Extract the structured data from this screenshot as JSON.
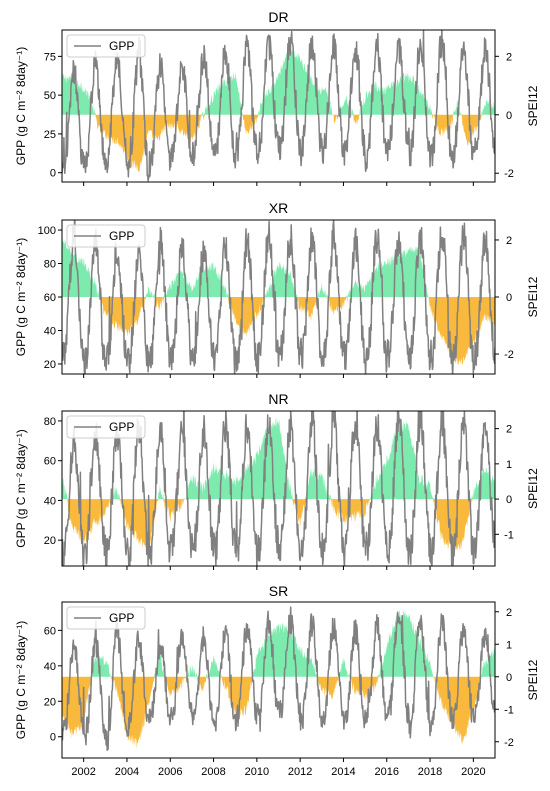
{
  "chart_data": [
    {
      "type": "line",
      "title": "DR",
      "ylabel": "GPP (g C m⁻² 8day⁻¹)",
      "y2label": "SPEI12",
      "ylim": [
        -6,
        92
      ],
      "yticks": [
        0,
        25,
        50,
        75
      ],
      "y2lim": [
        -2.3,
        2.9
      ],
      "y2ticks": [
        -2,
        0,
        2
      ],
      "xlim": [
        2001,
        2021
      ],
      "xticks": [
        2002,
        2004,
        2006,
        2008,
        2010,
        2012,
        2014,
        2016,
        2018,
        2020
      ],
      "show_xtick_labels": false,
      "legend": {
        "label": "GPP",
        "position": "top-left"
      },
      "gpp": {
        "season_peak_years": [
          2001.55,
          2002.55,
          2003.55,
          2004.55,
          2005.55,
          2006.55,
          2007.55,
          2008.55,
          2009.55,
          2010.55,
          2011.55,
          2012.55,
          2013.55,
          2014.55,
          2015.55,
          2016.55,
          2017.55,
          2018.55,
          2019.55,
          2020.55
        ],
        "peaks": [
          65,
          70,
          72,
          78,
          70,
          68,
          75,
          78,
          80,
          82,
          85,
          84,
          84,
          80,
          82,
          80,
          82,
          85,
          80,
          80
        ],
        "troughs": [
          3,
          5,
          8,
          0,
          5,
          10,
          12,
          10,
          12,
          15,
          15,
          14,
          15,
          12,
          10,
          15,
          12,
          10,
          12,
          14
        ]
      },
      "spei": {
        "x": [
          2001,
          2001.5,
          2001.9,
          2002.3,
          2002.7,
          2003.2,
          2003.6,
          2004.2,
          2004.6,
          2005.0,
          2005.4,
          2005.8,
          2006.2,
          2006.6,
          2007.0,
          2007.4,
          2007.9,
          2008.3,
          2008.7,
          2009.0,
          2009.5,
          2009.9,
          2010.3,
          2010.7,
          2011.1,
          2011.5,
          2012.0,
          2012.4,
          2012.8,
          2013.2,
          2013.6,
          2014.1,
          2014.6,
          2015.0,
          2015.5,
          2015.9,
          2016.3,
          2016.8,
          2017.2,
          2017.6,
          2018.0,
          2018.4,
          2018.9,
          2019.3,
          2019.7,
          2020.2,
          2020.6,
          2021.0
        ],
        "y": [
          1.3,
          1.2,
          1.0,
          0.6,
          -0.5,
          -0.8,
          -0.9,
          -1.7,
          -1.8,
          -0.6,
          -0.9,
          -0.4,
          -0.4,
          -0.6,
          -0.9,
          -0.2,
          0.5,
          1.0,
          1.2,
          1.4,
          -0.6,
          -0.4,
          0.6,
          0.9,
          1.5,
          2.2,
          1.9,
          1.4,
          0.8,
          0.9,
          -0.3,
          0.6,
          -0.3,
          0.6,
          1.0,
          0.8,
          1.0,
          1.3,
          1.2,
          0.7,
          0.3,
          -0.6,
          -0.5,
          0.5,
          -1.0,
          -0.4,
          0.5,
          0.3
        ]
      }
    },
    {
      "type": "line",
      "title": "XR",
      "ylabel": "GPP (g C m⁻² 8day⁻¹)",
      "y2label": "SPEI12",
      "ylim": [
        14,
        106
      ],
      "yticks": [
        20,
        40,
        60,
        80,
        100
      ],
      "y2lim": [
        -2.7,
        2.7
      ],
      "y2ticks": [
        -2,
        0,
        2
      ],
      "xlim": [
        2001,
        2021
      ],
      "xticks": [
        2002,
        2004,
        2006,
        2008,
        2010,
        2012,
        2014,
        2016,
        2018,
        2020
      ],
      "show_xtick_labels": false,
      "legend": {
        "label": "GPP",
        "position": "top-left"
      },
      "gpp": {
        "season_peak_years": [
          2001.55,
          2002.55,
          2003.55,
          2004.55,
          2005.55,
          2006.55,
          2007.55,
          2008.55,
          2009.55,
          2010.55,
          2011.55,
          2012.55,
          2013.55,
          2014.55,
          2015.55,
          2016.55,
          2017.55,
          2018.55,
          2019.55,
          2020.55
        ],
        "peaks": [
          95,
          92,
          88,
          86,
          92,
          90,
          88,
          90,
          94,
          98,
          95,
          96,
          95,
          92,
          95,
          94,
          96,
          98,
          95,
          93
        ],
        "troughs": [
          25,
          20,
          22,
          20,
          22,
          23,
          24,
          22,
          22,
          24,
          25,
          24,
          23,
          24,
          22,
          25,
          24,
          25,
          22,
          24
        ]
      },
      "spei": {
        "x": [
          2001,
          2001.5,
          2002.0,
          2002.5,
          2003.0,
          2003.5,
          2004.0,
          2004.5,
          2005.0,
          2005.5,
          2006.0,
          2006.5,
          2007.0,
          2007.5,
          2008.0,
          2008.5,
          2009.0,
          2009.5,
          2010.0,
          2010.5,
          2011.0,
          2011.5,
          2012.0,
          2012.5,
          2013.0,
          2013.5,
          2014.0,
          2014.5,
          2015.0,
          2015.5,
          2016.0,
          2016.5,
          2017.0,
          2017.5,
          2018.0,
          2018.5,
          2019.0,
          2019.5,
          2020.0,
          2020.5,
          2021.0
        ],
        "y": [
          2.1,
          1.5,
          1.2,
          0.5,
          -0.6,
          -1.0,
          -1.3,
          -0.8,
          0.3,
          -0.4,
          0.4,
          0.9,
          0.3,
          1.0,
          1.1,
          0.4,
          -0.8,
          -1.3,
          -0.6,
          0.2,
          1.1,
          0.9,
          -0.4,
          -0.7,
          0.4,
          -0.5,
          -0.3,
          0.5,
          0.3,
          1.0,
          1.2,
          1.4,
          1.6,
          1.7,
          -0.4,
          -1.3,
          -2.1,
          -2.3,
          -1.6,
          -0.7,
          -0.9
        ]
      }
    },
    {
      "type": "line",
      "title": "NR",
      "ylabel": "GPP (g C m⁻² 8day⁻¹)",
      "y2label": "SPEI12",
      "ylim": [
        7,
        85
      ],
      "yticks": [
        20,
        40,
        60,
        80
      ],
      "y2lim": [
        -1.9,
        2.5
      ],
      "y2ticks": [
        -1,
        0,
        1,
        2
      ],
      "xlim": [
        2001,
        2021
      ],
      "xticks": [
        2002,
        2004,
        2006,
        2008,
        2010,
        2012,
        2014,
        2016,
        2018,
        2020
      ],
      "show_xtick_labels": false,
      "legend": {
        "label": "GPP",
        "position": "top-left"
      },
      "gpp": {
        "season_peak_years": [
          2001.55,
          2002.55,
          2003.55,
          2004.55,
          2005.55,
          2006.55,
          2007.55,
          2008.55,
          2009.55,
          2010.55,
          2011.55,
          2012.55,
          2013.55,
          2014.55,
          2015.55,
          2016.55,
          2017.55,
          2018.55,
          2019.55,
          2020.55
        ],
        "peaks": [
          70,
          72,
          75,
          76,
          74,
          75,
          76,
          78,
          78,
          80,
          78,
          79,
          80,
          79,
          78,
          80,
          80,
          78,
          79,
          78
        ],
        "troughs": [
          12,
          14,
          14,
          12,
          14,
          16,
          16,
          15,
          14,
          15,
          16,
          15,
          14,
          15,
          16,
          15,
          15,
          14,
          14,
          16
        ]
      },
      "spei": {
        "x": [
          2001,
          2001.5,
          2002.0,
          2002.5,
          2003.0,
          2003.5,
          2004.0,
          2004.5,
          2005.0,
          2005.5,
          2006.0,
          2006.5,
          2007.0,
          2007.5,
          2008.0,
          2008.5,
          2009.0,
          2009.5,
          2010.0,
          2010.5,
          2011.0,
          2011.5,
          2012.0,
          2012.5,
          2013.0,
          2013.5,
          2014.0,
          2014.5,
          2015.0,
          2015.5,
          2016.0,
          2016.5,
          2017.0,
          2017.5,
          2018.0,
          2018.5,
          2019.0,
          2019.5,
          2020.0,
          2020.5,
          2021.0
        ],
        "y": [
          0.6,
          -0.8,
          -1.2,
          -0.7,
          -0.4,
          0.3,
          -0.7,
          -1.1,
          -1.5,
          0.3,
          -0.5,
          -0.2,
          0.6,
          0.3,
          0.9,
          0.7,
          0.5,
          0.8,
          1.2,
          2.0,
          2.2,
          0.4,
          -0.7,
          0.8,
          0.6,
          -0.2,
          -0.6,
          -0.5,
          -0.4,
          0.5,
          1.1,
          2.0,
          2.1,
          0.6,
          0.4,
          -1.0,
          -1.4,
          -1.3,
          0.2,
          0.8,
          0.5
        ]
      }
    },
    {
      "type": "line",
      "title": "SR",
      "ylabel": "GPP (g C m⁻² 8day⁻¹)",
      "y2label": "SPEI12",
      "ylim": [
        -12,
        76
      ],
      "yticks": [
        0,
        20,
        40,
        60
      ],
      "y2lim": [
        -2.5,
        2.3
      ],
      "y2ticks": [
        -2,
        -1,
        0,
        1,
        2
      ],
      "xlim": [
        2001,
        2021
      ],
      "xticks": [
        2002,
        2004,
        2006,
        2008,
        2010,
        2012,
        2014,
        2016,
        2018,
        2020
      ],
      "show_xtick_labels": true,
      "legend": {
        "label": "GPP",
        "position": "top-left"
      },
      "gpp": {
        "season_peak_years": [
          2001.55,
          2002.55,
          2003.55,
          2004.55,
          2005.55,
          2006.55,
          2007.55,
          2008.55,
          2009.55,
          2010.55,
          2011.55,
          2012.55,
          2013.55,
          2014.55,
          2015.55,
          2016.55,
          2017.55,
          2018.55,
          2019.55,
          2020.55
        ],
        "peaks": [
          52,
          54,
          60,
          55,
          52,
          58,
          56,
          60,
          62,
          64,
          66,
          64,
          62,
          60,
          62,
          70,
          66,
          64,
          62,
          60
        ],
        "troughs": [
          2,
          0,
          -2,
          5,
          10,
          12,
          8,
          6,
          10,
          12,
          14,
          10,
          12,
          8,
          10,
          12,
          6,
          10,
          8,
          12
        ]
      },
      "spei": {
        "x": [
          2001,
          2001.5,
          2002.0,
          2002.5,
          2003.0,
          2003.5,
          2004.0,
          2004.5,
          2005.0,
          2005.5,
          2006.0,
          2006.5,
          2007.0,
          2007.5,
          2008.0,
          2008.5,
          2009.0,
          2009.5,
          2010.0,
          2010.5,
          2011.0,
          2011.5,
          2012.0,
          2012.5,
          2013.0,
          2013.5,
          2014.0,
          2014.5,
          2015.0,
          2015.5,
          2016.0,
          2016.5,
          2017.0,
          2017.5,
          2018.0,
          2018.5,
          2019.0,
          2019.5,
          2020.0,
          2020.5,
          2021.0
        ],
        "y": [
          -1.2,
          -1.8,
          -1.4,
          0.6,
          0.5,
          -0.4,
          -1.8,
          -2.1,
          -0.8,
          0.7,
          -0.6,
          -0.3,
          0.3,
          -0.4,
          0.6,
          -0.2,
          -1.1,
          -1.0,
          0.6,
          1.2,
          1.5,
          1.5,
          0.8,
          0.6,
          -0.4,
          -0.6,
          0.5,
          -0.4,
          -0.6,
          -0.3,
          1.0,
          1.9,
          1.9,
          1.1,
          0.4,
          -0.8,
          -1.4,
          -2.0,
          -1.0,
          0.4,
          0.8
        ]
      }
    }
  ],
  "style": {
    "gpp_color": "#808080",
    "spei_pos_color": "#66E7A0",
    "spei_neg_color": "#F9B532"
  }
}
